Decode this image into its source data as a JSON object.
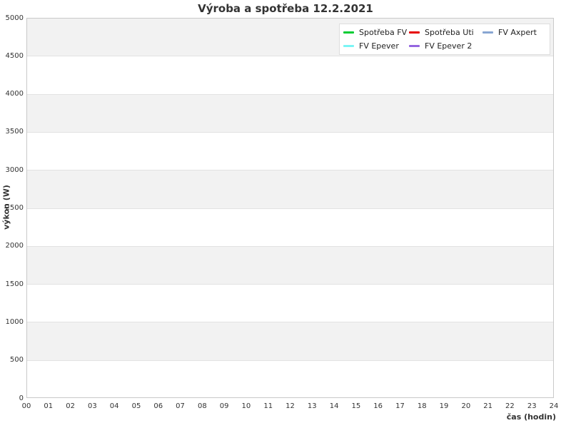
{
  "chart_data": {
    "type": "line",
    "title": "Výroba a spotřeba 12.2.2021",
    "xlabel": "čas (hodin)",
    "ylabel": "výkon (W)",
    "xlim": [
      0,
      24
    ],
    "ylim": [
      0,
      5000
    ],
    "x_ticks": [
      "00",
      "01",
      "02",
      "03",
      "04",
      "05",
      "06",
      "07",
      "08",
      "09",
      "10",
      "11",
      "12",
      "13",
      "14",
      "15",
      "16",
      "17",
      "18",
      "19",
      "20",
      "21",
      "22",
      "23",
      "24"
    ],
    "y_ticks": [
      "5000",
      "4500",
      "4000",
      "3500",
      "3000",
      "2500",
      "2000",
      "1500",
      "1000",
      "500",
      "0"
    ],
    "grid": "alternating horizontal bands every 500 W, thin gridlines at band boundaries",
    "legend_position": "top-right",
    "series": [
      {
        "name": "Spotřeba FV",
        "color": "#00cc33",
        "values": []
      },
      {
        "name": "Spotřeba Uti",
        "color": "#e60000",
        "values": []
      },
      {
        "name": "FV Axpert",
        "color": "#88a6d2",
        "values": []
      },
      {
        "name": "FV Epever",
        "color": "#7af5f5",
        "values": []
      },
      {
        "name": "FV Epever 2",
        "color": "#9466e0",
        "values": []
      }
    ],
    "colors": {
      "band_gray": "#f2f2f2",
      "band_white": "#ffffff",
      "gridline": "#e2e2e2",
      "plot_border": "#c9c9c9",
      "text": "#333333",
      "legend_border": "#dddddd",
      "background": "#ffffff"
    }
  }
}
